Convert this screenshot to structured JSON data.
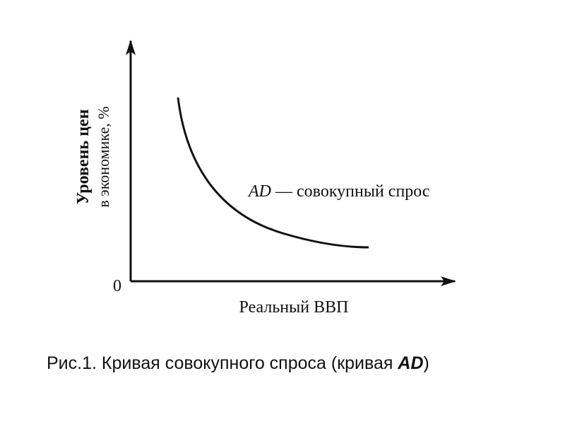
{
  "diagram": {
    "type": "demand-curve",
    "y_axis_label_line1": "Уровень цен",
    "y_axis_label_line2": "в экономике, %",
    "x_axis_label": "Реальный ВВП",
    "origin_label": "0",
    "curve_label_italic": "AD",
    "curve_label_rest": " — совокупный спрос",
    "line_color": "#111111"
  },
  "caption": {
    "prefix": "Рис.1. Кривая совокупного спроса (кривая ",
    "emphasis": "AD",
    "suffix": ")"
  }
}
